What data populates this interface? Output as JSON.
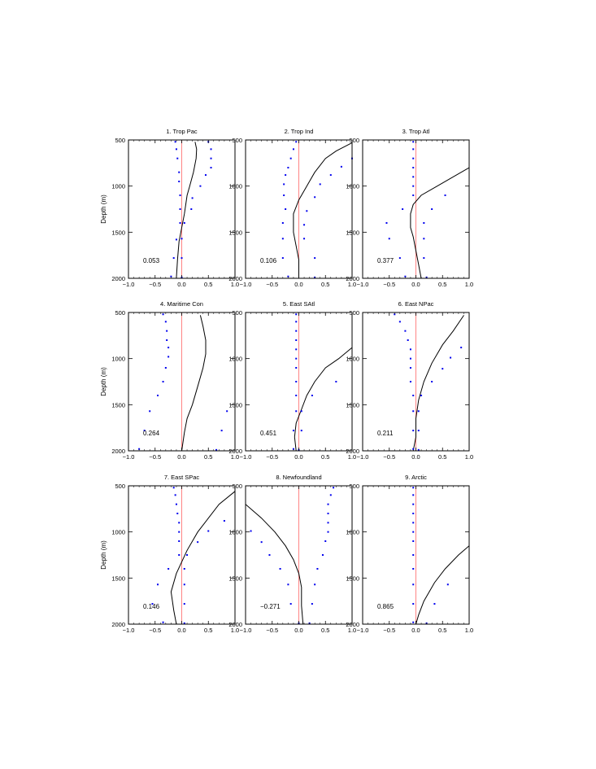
{
  "chart_data": [
    {
      "type": "line",
      "title": "1. Trop Pac",
      "ylabel": "Depth (m)",
      "xlim": [
        -1.0,
        1.0
      ],
      "ylim": [
        500,
        2000
      ],
      "xticks": [
        "−1.0",
        "−0.5",
        "0.0",
        "0.5",
        "1.0"
      ],
      "yticks": [
        "500",
        "1000",
        "1500",
        "2000"
      ],
      "annotation": "0.053",
      "zero_line_color": "#ff6666",
      "series_color": "#000000",
      "dots_color": "#0000ee",
      "profile": [
        [
          0.25,
          520
        ],
        [
          0.28,
          600
        ],
        [
          0.27,
          700
        ],
        [
          0.22,
          850
        ],
        [
          0.15,
          1000
        ],
        [
          0.1,
          1100
        ],
        [
          0.05,
          1300
        ],
        [
          0.0,
          1450
        ],
        [
          -0.05,
          1600
        ],
        [
          -0.08,
          1800
        ],
        [
          -0.1,
          2000
        ]
      ],
      "bound_left": [
        [
          -0.12,
          520
        ],
        [
          -0.1,
          600
        ],
        [
          -0.08,
          700
        ],
        [
          -0.05,
          850
        ],
        [
          -0.05,
          950
        ],
        [
          -0.03,
          1100
        ],
        [
          -0.03,
          1250
        ],
        [
          -0.03,
          1400
        ],
        [
          -0.1,
          1580
        ],
        [
          -0.15,
          1780
        ],
        [
          -0.2,
          1980
        ]
      ],
      "bound_right": [
        [
          0.5,
          520
        ],
        [
          0.55,
          600
        ],
        [
          0.55,
          700
        ],
        [
          0.55,
          800
        ],
        [
          0.45,
          880
        ],
        [
          0.35,
          1000
        ],
        [
          0.2,
          1130
        ],
        [
          0.18,
          1250
        ],
        [
          0.05,
          1400
        ],
        [
          0.0,
          1570
        ],
        [
          0.0,
          1780
        ],
        [
          0.0,
          1990
        ]
      ]
    },
    {
      "type": "line",
      "title": "2. Trop Ind",
      "ylabel": "",
      "xlim": [
        -1.0,
        1.0
      ],
      "ylim": [
        500,
        2000
      ],
      "xticks": [
        "−1.0",
        "−0.5",
        "0.0",
        "0.5",
        "1.0"
      ],
      "yticks": [
        "500",
        "1000",
        "1500",
        "2000"
      ],
      "annotation": "0.106",
      "zero_line_color": "#ff6666",
      "series_color": "#000000",
      "dots_color": "#0000ee",
      "profile": [
        [
          1.0,
          530
        ],
        [
          0.7,
          620
        ],
        [
          0.5,
          700
        ],
        [
          0.3,
          850
        ],
        [
          0.15,
          1000
        ],
        [
          0.0,
          1150
        ],
        [
          -0.1,
          1300
        ],
        [
          -0.1,
          1500
        ],
        [
          -0.05,
          1650
        ],
        [
          0.0,
          1800
        ],
        [
          0.0,
          2000
        ]
      ],
      "bound_left": [
        [
          -0.05,
          520
        ],
        [
          -0.1,
          600
        ],
        [
          -0.15,
          700
        ],
        [
          -0.2,
          800
        ],
        [
          -0.25,
          880
        ],
        [
          -0.28,
          980
        ],
        [
          -0.28,
          1100
        ],
        [
          -0.25,
          1250
        ],
        [
          -0.3,
          1400
        ],
        [
          -0.3,
          1570
        ],
        [
          -0.3,
          1780
        ],
        [
          -0.2,
          1980
        ]
      ],
      "bound_right": [
        [
          1.0,
          700
        ],
        [
          0.8,
          790
        ],
        [
          0.6,
          880
        ],
        [
          0.4,
          980
        ],
        [
          0.3,
          1120
        ],
        [
          0.15,
          1270
        ],
        [
          0.1,
          1420
        ],
        [
          0.1,
          1570
        ],
        [
          0.3,
          1780
        ],
        [
          0.3,
          1990
        ]
      ]
    },
    {
      "type": "line",
      "title": "3. Trop Atl",
      "ylabel": "",
      "xlim": [
        -1.0,
        1.0
      ],
      "ylim": [
        500,
        2000
      ],
      "xticks": [
        "−1.0",
        "−0.5",
        "0.0",
        "0.5",
        "1.0"
      ],
      "yticks": [
        "500",
        "1000",
        "1500",
        "2000"
      ],
      "annotation": "0.377",
      "zero_line_color": "#ff6666",
      "series_color": "#000000",
      "dots_color": "#0000ee",
      "profile": [
        [
          1.0,
          800
        ],
        [
          0.7,
          900
        ],
        [
          0.4,
          1000
        ],
        [
          0.1,
          1100
        ],
        [
          -0.05,
          1200
        ],
        [
          -0.1,
          1300
        ],
        [
          -0.1,
          1450
        ],
        [
          -0.05,
          1550
        ],
        [
          0.0,
          1700
        ],
        [
          0.05,
          1850
        ],
        [
          0.1,
          2000
        ]
      ],
      "bound_left": [
        [
          -0.05,
          520
        ],
        [
          -0.05,
          600
        ],
        [
          -0.05,
          700
        ],
        [
          -0.05,
          800
        ],
        [
          -0.05,
          900
        ],
        [
          -0.05,
          1000
        ],
        [
          -0.05,
          1100
        ],
        [
          -0.25,
          1250
        ],
        [
          -0.55,
          1400
        ],
        [
          -0.5,
          1570
        ],
        [
          -0.3,
          1780
        ],
        [
          -0.2,
          1980
        ]
      ],
      "bound_right": [
        [
          0.55,
          1100
        ],
        [
          0.3,
          1250
        ],
        [
          0.15,
          1400
        ],
        [
          0.15,
          1570
        ],
        [
          0.15,
          1780
        ],
        [
          0.2,
          1990
        ]
      ]
    },
    {
      "type": "line",
      "title": "4. Maritime Con",
      "ylabel": "Depth (m)",
      "xlim": [
        -1.0,
        1.0
      ],
      "ylim": [
        500,
        2000
      ],
      "xticks": [
        "−1.0",
        "−0.5",
        "0.0",
        "0.5",
        "1.0"
      ],
      "yticks": [
        "500",
        "1000",
        "1500",
        "2000"
      ],
      "annotation": "0.264",
      "zero_line_color": "#ff6666",
      "series_color": "#000000",
      "dots_color": "#0000ee",
      "profile": [
        [
          0.35,
          530
        ],
        [
          0.4,
          650
        ],
        [
          0.45,
          800
        ],
        [
          0.45,
          950
        ],
        [
          0.4,
          1100
        ],
        [
          0.3,
          1300
        ],
        [
          0.2,
          1500
        ],
        [
          0.1,
          1650
        ],
        [
          0.05,
          1800
        ],
        [
          0.0,
          2000
        ]
      ],
      "bound_left": [
        [
          -0.35,
          520
        ],
        [
          -0.3,
          600
        ],
        [
          -0.28,
          700
        ],
        [
          -0.28,
          800
        ],
        [
          -0.25,
          880
        ],
        [
          -0.25,
          980
        ],
        [
          -0.3,
          1100
        ],
        [
          -0.35,
          1250
        ],
        [
          -0.45,
          1400
        ],
        [
          -0.6,
          1570
        ],
        [
          -0.7,
          1780
        ],
        [
          -0.8,
          1980
        ]
      ],
      "bound_right": [
        [
          0.85,
          1570
        ],
        [
          0.75,
          1780
        ],
        [
          0.65,
          1990
        ]
      ]
    },
    {
      "type": "line",
      "title": "5. East SAtl",
      "ylabel": "",
      "xlim": [
        -1.0,
        1.0
      ],
      "ylim": [
        500,
        2000
      ],
      "xticks": [
        "−1.0",
        "−0.5",
        "0.0",
        "0.5",
        "1.0"
      ],
      "yticks": [
        "500",
        "1000",
        "1500",
        "2000"
      ],
      "annotation": "0.451",
      "zero_line_color": "#ff6666",
      "series_color": "#000000",
      "dots_color": "#0000ee",
      "profile": [
        [
          1.0,
          880
        ],
        [
          0.75,
          1000
        ],
        [
          0.5,
          1100
        ],
        [
          0.3,
          1250
        ],
        [
          0.15,
          1400
        ],
        [
          0.05,
          1550
        ],
        [
          -0.05,
          1700
        ],
        [
          -0.08,
          1850
        ],
        [
          -0.05,
          2000
        ]
      ],
      "bound_left": [
        [
          -0.05,
          520
        ],
        [
          -0.05,
          600
        ],
        [
          -0.05,
          700
        ],
        [
          -0.05,
          800
        ],
        [
          -0.05,
          900
        ],
        [
          -0.05,
          1000
        ],
        [
          -0.05,
          1100
        ],
        [
          -0.05,
          1250
        ],
        [
          -0.05,
          1400
        ],
        [
          -0.05,
          1570
        ],
        [
          -0.1,
          1780
        ],
        [
          -0.1,
          1980
        ]
      ],
      "bound_right": [
        [
          0.7,
          1250
        ],
        [
          0.25,
          1400
        ],
        [
          0.05,
          1570
        ],
        [
          0.05,
          1780
        ],
        [
          0.0,
          1990
        ]
      ]
    },
    {
      "type": "line",
      "title": "6. East NPac",
      "ylabel": "",
      "xlim": [
        -1.0,
        1.0
      ],
      "ylim": [
        500,
        2000
      ],
      "xticks": [
        "−1.0",
        "−0.5",
        "0.0",
        "0.5",
        "1.0"
      ],
      "yticks": [
        "500",
        "1000",
        "1500",
        "2000"
      ],
      "annotation": "0.211",
      "zero_line_color": "#ff6666",
      "series_color": "#000000",
      "dots_color": "#0000ee",
      "profile": [
        [
          0.9,
          530
        ],
        [
          0.7,
          700
        ],
        [
          0.5,
          850
        ],
        [
          0.3,
          1050
        ],
        [
          0.15,
          1250
        ],
        [
          0.05,
          1450
        ],
        [
          0.0,
          1650
        ],
        [
          0.0,
          1850
        ],
        [
          -0.05,
          2000
        ]
      ],
      "bound_left": [
        [
          -0.4,
          520
        ],
        [
          -0.3,
          600
        ],
        [
          -0.2,
          700
        ],
        [
          -0.15,
          800
        ],
        [
          -0.1,
          900
        ],
        [
          -0.1,
          1000
        ],
        [
          -0.1,
          1100
        ],
        [
          -0.1,
          1250
        ],
        [
          -0.05,
          1400
        ],
        [
          -0.05,
          1570
        ],
        [
          -0.05,
          1780
        ],
        [
          -0.05,
          1980
        ]
      ],
      "bound_right": [
        [
          0.85,
          880
        ],
        [
          0.65,
          990
        ],
        [
          0.5,
          1110
        ],
        [
          0.3,
          1250
        ],
        [
          0.1,
          1400
        ],
        [
          0.05,
          1570
        ],
        [
          0.05,
          1780
        ],
        [
          0.05,
          1990
        ]
      ]
    },
    {
      "type": "line",
      "title": "7. East SPac",
      "ylabel": "Depth (m)",
      "xlim": [
        -1.0,
        1.0
      ],
      "ylim": [
        500,
        2000
      ],
      "xticks": [
        "−1.0",
        "−0.5",
        "0.0",
        "0.5",
        "1.0"
      ],
      "yticks": [
        "500",
        "1000",
        "1500",
        "2000"
      ],
      "annotation": "0.146",
      "zero_line_color": "#ff6666",
      "series_color": "#000000",
      "dots_color": "#0000ee",
      "profile": [
        [
          1.0,
          560
        ],
        [
          0.7,
          700
        ],
        [
          0.5,
          850
        ],
        [
          0.3,
          1000
        ],
        [
          0.1,
          1200
        ],
        [
          -0.1,
          1450
        ],
        [
          -0.2,
          1650
        ],
        [
          -0.15,
          1850
        ],
        [
          -0.1,
          2000
        ]
      ],
      "bound_left": [
        [
          -0.15,
          520
        ],
        [
          -0.12,
          600
        ],
        [
          -0.1,
          700
        ],
        [
          -0.08,
          800
        ],
        [
          -0.05,
          900
        ],
        [
          -0.05,
          1000
        ],
        [
          -0.05,
          1100
        ],
        [
          -0.05,
          1250
        ],
        [
          -0.25,
          1400
        ],
        [
          -0.45,
          1570
        ],
        [
          -0.55,
          1780
        ],
        [
          -0.35,
          1980
        ]
      ],
      "bound_right": [
        [
          0.8,
          880
        ],
        [
          0.5,
          990
        ],
        [
          0.3,
          1110
        ],
        [
          0.1,
          1250
        ],
        [
          0.05,
          1400
        ],
        [
          0.05,
          1570
        ],
        [
          0.05,
          1780
        ],
        [
          0.05,
          1990
        ]
      ]
    },
    {
      "type": "line",
      "title": "8. Newfoundland",
      "ylabel": "",
      "xlim": [
        -1.0,
        1.0
      ],
      "ylim": [
        500,
        2000
      ],
      "xticks": [
        "−1.0",
        "−0.5",
        "0.0",
        "0.5",
        "1.0"
      ],
      "yticks": [
        "500",
        "1000",
        "1500",
        "2000"
      ],
      "annotation": "−0.271",
      "zero_line_color": "#ff6666",
      "series_color": "#000000",
      "dots_color": "#0000ee",
      "profile": [
        [
          -1.0,
          700
        ],
        [
          -0.7,
          850
        ],
        [
          -0.45,
          1000
        ],
        [
          -0.25,
          1150
        ],
        [
          -0.1,
          1300
        ],
        [
          0.0,
          1450
        ],
        [
          0.05,
          1600
        ],
        [
          0.05,
          1800
        ],
        [
          0.08,
          2000
        ]
      ],
      "bound_left": [
        [
          -0.9,
          990
        ],
        [
          -0.7,
          1110
        ],
        [
          -0.55,
          1250
        ],
        [
          -0.35,
          1400
        ],
        [
          -0.2,
          1570
        ],
        [
          -0.15,
          1780
        ],
        [
          0.0,
          1990
        ]
      ],
      "bound_right": [
        [
          0.65,
          520
        ],
        [
          0.6,
          600
        ],
        [
          0.55,
          700
        ],
        [
          0.55,
          800
        ],
        [
          0.55,
          900
        ],
        [
          0.55,
          1000
        ],
        [
          0.5,
          1100
        ],
        [
          0.45,
          1250
        ],
        [
          0.35,
          1400
        ],
        [
          0.3,
          1570
        ],
        [
          0.25,
          1780
        ],
        [
          0.2,
          1990
        ]
      ]
    },
    {
      "type": "line",
      "title": "9. Arctic",
      "ylabel": "",
      "xlim": [
        -1.0,
        1.0
      ],
      "ylim": [
        500,
        2000
      ],
      "xticks": [
        "−1.0",
        "−0.5",
        "0.0",
        "0.5",
        "1.0"
      ],
      "yticks": [
        "500",
        "1000",
        "1500",
        "2000"
      ],
      "annotation": "0.865",
      "zero_line_color": "#ff6666",
      "series_color": "#000000",
      "dots_color": "#0000ee",
      "profile": [
        [
          1.0,
          1150
        ],
        [
          0.8,
          1250
        ],
        [
          0.55,
          1400
        ],
        [
          0.35,
          1550
        ],
        [
          0.15,
          1750
        ],
        [
          0.05,
          1900
        ],
        [
          0.0,
          2000
        ]
      ],
      "bound_left": [
        [
          -0.05,
          520
        ],
        [
          -0.05,
          600
        ],
        [
          -0.05,
          700
        ],
        [
          -0.05,
          800
        ],
        [
          -0.05,
          900
        ],
        [
          -0.05,
          1000
        ],
        [
          -0.05,
          1100
        ],
        [
          -0.05,
          1250
        ],
        [
          -0.05,
          1400
        ],
        [
          -0.05,
          1570
        ],
        [
          -0.05,
          1780
        ],
        [
          -0.05,
          1980
        ]
      ],
      "bound_right": [
        [
          0.6,
          1570
        ],
        [
          0.35,
          1780
        ],
        [
          0.2,
          1990
        ]
      ]
    }
  ]
}
